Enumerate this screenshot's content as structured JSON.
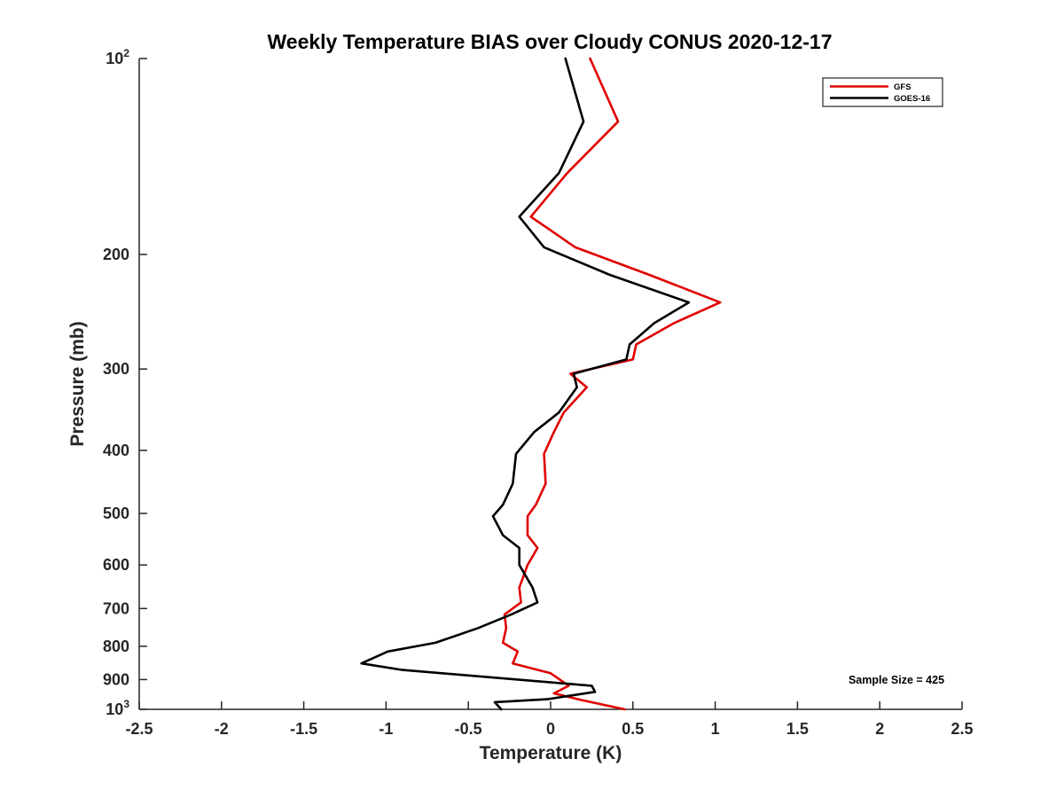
{
  "chart_data": {
    "type": "line",
    "title": "Weekly Temperature BIAS over Cloudy CONUS 2020-12-17",
    "xlabel": "Temperature (K)",
    "ylabel": "Pressure (mb)",
    "xlim": [
      -2.5,
      2.5
    ],
    "ylim": [
      1000,
      100
    ],
    "y_scale": "log",
    "y_reversed": true,
    "x_ticks": [
      "-2.5",
      "-2",
      "-1.5",
      "-1",
      "-0.5",
      "0",
      "0.5",
      "1",
      "1.5",
      "2",
      "2.5"
    ],
    "y_ticks": [
      {
        "value": 100,
        "base": "10",
        "exp": "2"
      },
      {
        "value": 200,
        "label": "200"
      },
      {
        "value": 300,
        "label": "300"
      },
      {
        "value": 400,
        "label": "400"
      },
      {
        "value": 500,
        "label": "500"
      },
      {
        "value": 600,
        "label": "600"
      },
      {
        "value": 700,
        "label": "700"
      },
      {
        "value": 800,
        "label": "800"
      },
      {
        "value": 900,
        "label": "900"
      },
      {
        "value": 1000,
        "base": "10",
        "exp": "3"
      }
    ],
    "grid": false,
    "legend_position": "top-right",
    "series": [
      {
        "name": "GFS",
        "color": "#e00000",
        "points": [
          [
            0.24,
            100
          ],
          [
            0.41,
            125
          ],
          [
            0.1,
            150
          ],
          [
            -0.12,
            175
          ],
          [
            0.15,
            195
          ],
          [
            0.6,
            215
          ],
          [
            1.03,
            237
          ],
          [
            0.75,
            255
          ],
          [
            0.52,
            275
          ],
          [
            0.5,
            290
          ],
          [
            0.12,
            305
          ],
          [
            0.22,
            320
          ],
          [
            0.08,
            350
          ],
          [
            0.02,
            375
          ],
          [
            -0.04,
            405
          ],
          [
            -0.03,
            450
          ],
          [
            -0.09,
            485
          ],
          [
            -0.14,
            505
          ],
          [
            -0.14,
            540
          ],
          [
            -0.08,
            565
          ],
          [
            -0.14,
            600
          ],
          [
            -0.19,
            650
          ],
          [
            -0.18,
            685
          ],
          [
            -0.28,
            715
          ],
          [
            -0.27,
            750
          ],
          [
            -0.29,
            790
          ],
          [
            -0.2,
            815
          ],
          [
            -0.23,
            850
          ],
          [
            0.0,
            880
          ],
          [
            0.11,
            920
          ],
          [
            0.02,
            945
          ],
          [
            0.19,
            968
          ],
          [
            0.45,
            1000
          ]
        ]
      },
      {
        "name": "GOES-16",
        "color": "#000000",
        "points": [
          [
            0.09,
            100
          ],
          [
            0.2,
            125
          ],
          [
            0.05,
            150
          ],
          [
            -0.19,
            175
          ],
          [
            -0.04,
            195
          ],
          [
            0.36,
            215
          ],
          [
            0.84,
            237
          ],
          [
            0.63,
            255
          ],
          [
            0.48,
            275
          ],
          [
            0.46,
            290
          ],
          [
            0.14,
            305
          ],
          [
            0.16,
            320
          ],
          [
            0.05,
            350
          ],
          [
            -0.1,
            375
          ],
          [
            -0.21,
            405
          ],
          [
            -0.23,
            450
          ],
          [
            -0.29,
            485
          ],
          [
            -0.35,
            505
          ],
          [
            -0.29,
            540
          ],
          [
            -0.19,
            565
          ],
          [
            -0.19,
            600
          ],
          [
            -0.11,
            650
          ],
          [
            -0.08,
            685
          ],
          [
            -0.24,
            715
          ],
          [
            -0.44,
            750
          ],
          [
            -0.7,
            790
          ],
          [
            -0.99,
            815
          ],
          [
            -1.15,
            850
          ],
          [
            -0.9,
            870
          ],
          [
            0.25,
            920
          ],
          [
            0.27,
            940
          ],
          [
            -0.02,
            965
          ],
          [
            -0.34,
            975
          ],
          [
            -0.3,
            1000
          ]
        ]
      }
    ],
    "annotations": [
      {
        "text": "Sample Size = 425"
      }
    ]
  }
}
